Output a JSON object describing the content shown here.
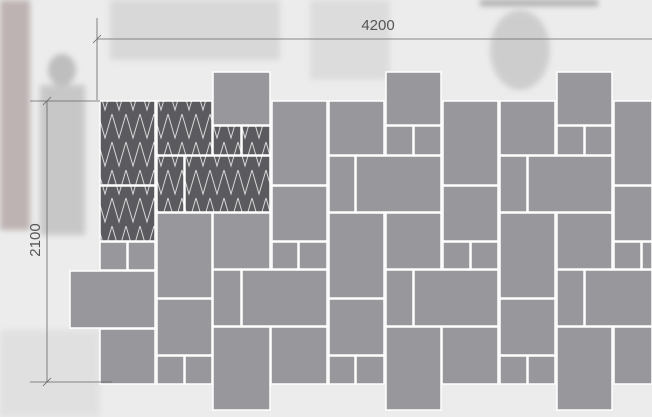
{
  "dimensions": {
    "width": 4200,
    "height": 2100
  }
}
